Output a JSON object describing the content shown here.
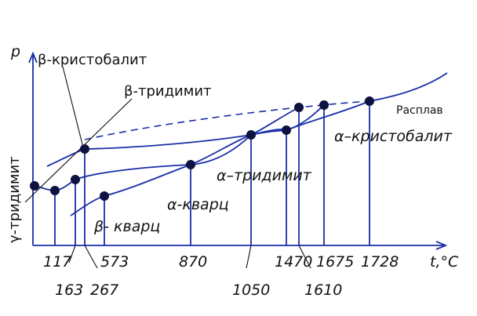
{
  "axes": {
    "y_label": "p",
    "x_label": "t,°C"
  },
  "ticks": [
    {
      "id": "t117",
      "text": "117"
    },
    {
      "id": "t163",
      "text": "163"
    },
    {
      "id": "t267",
      "text": "267"
    },
    {
      "id": "t573",
      "text": "573"
    },
    {
      "id": "t870",
      "text": "870"
    },
    {
      "id": "t1050",
      "text": "1050"
    },
    {
      "id": "t1470",
      "text": "1470"
    },
    {
      "id": "t1610",
      "text": "1610"
    },
    {
      "id": "t1675",
      "text": "1675"
    },
    {
      "id": "t1728",
      "text": "1728"
    }
  ],
  "phases": {
    "beta_cristobalite": "β-кристобалит",
    "beta_tridymite": "β-тридимит",
    "gamma_tridymite": "γ-тридимит",
    "beta_quartz": "β- кварц",
    "alpha_quartz": "α-кварц",
    "alpha_tridymite": "α–тридимит",
    "alpha_cristobalite": "α–кристобалит",
    "melt": "Расплав"
  }
}
